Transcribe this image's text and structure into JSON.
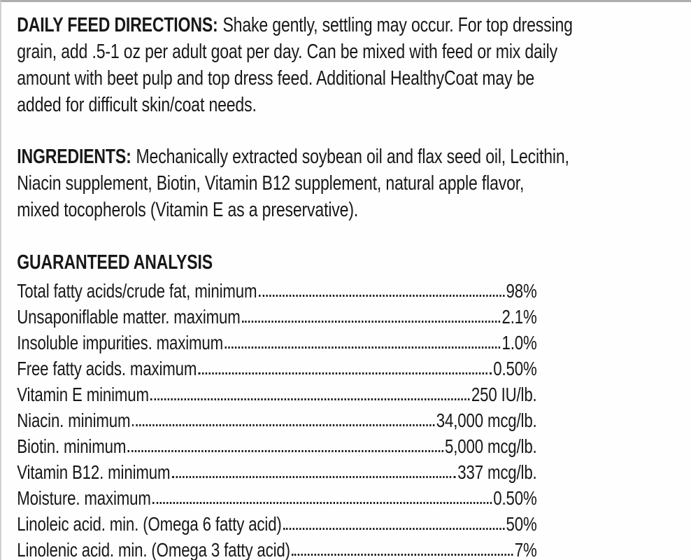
{
  "colors": {
    "text": "#181818",
    "background": "#fefefe",
    "scan_edge_top": "#aeaeae",
    "scan_edge_left": "#d0d0d0"
  },
  "feed_directions": {
    "heading": "DAILY FEED DIRECTIONS:",
    "body": "Shake gently, settling may occur. For top dressing\ngrain, add .5-1 oz per adult goat per day. Can be mixed with feed or mix daily\namount with beet pulp and top dress feed. Additional HealthyCoat may be\nadded for difficult skin/coat needs."
  },
  "ingredients": {
    "heading": "INGREDIENTS:",
    "body": "Mechanically extracted soybean oil and flax seed oil, Lecithin,\nNiacin supplement, Biotin, Vitamin B12 supplement, natural apple flavor,\nmixed tocopherols (Vitamin E as a preservative)."
  },
  "guaranteed_analysis": {
    "heading": "GUARANTEED ANALYSIS",
    "rows": [
      {
        "label": "Total fatty acids/crude fat, minimum",
        "value": "98%"
      },
      {
        "label": "Unsaponiflable matter. maximum",
        "value": "2.1%"
      },
      {
        "label": "Insoluble impurities. maximum",
        "value": "1.0%"
      },
      {
        "label": "Free fatty acids. maximum",
        "value": "0.50%"
      },
      {
        "label": "Vitamin E minimum",
        "value": "250 IU/lb."
      },
      {
        "label": "Niacin. minimum",
        "value": "34,000 mcg/lb."
      },
      {
        "label": "Biotin. minimum",
        "value": "5,000 mcg/lb."
      },
      {
        "label": "Vitamin B12. minimum",
        "value": "337 mcg/lb."
      },
      {
        "label": "Moisture. maximum",
        "value": "0.50%"
      },
      {
        "label": "Linoleic acid. min. (Omega 6 fatty acid)",
        "value": "50%"
      },
      {
        "label": "Linolenic acid. min. (Omega 3 fatty acid)",
        "value": "7%"
      }
    ]
  }
}
